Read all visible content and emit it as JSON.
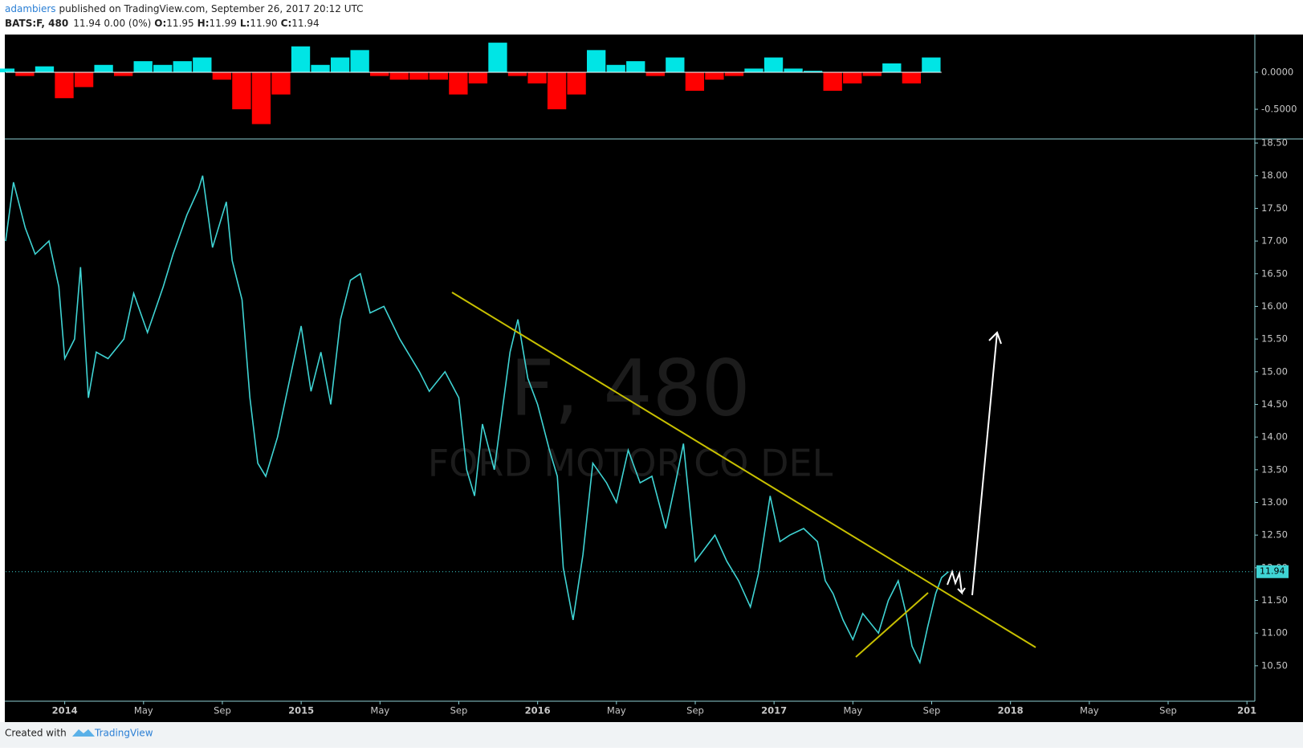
{
  "header": {
    "author": "adambiers",
    "published": "published on TradingView.com, September 26, 2017 20:12 UTC",
    "symbol": "BATS:F, 480",
    "quote": "11.94 0.00 (0%)",
    "ohlc": [
      {
        "label": "O:",
        "value": "11.95"
      },
      {
        "label": "H:",
        "value": "11.99"
      },
      {
        "label": "L:",
        "value": "11.90"
      },
      {
        "label": "C:",
        "value": "11.94"
      }
    ]
  },
  "footer": {
    "text": "Created with",
    "brand": "TradingView"
  },
  "chart_data": [
    {
      "type": "histogram-oscillator",
      "color_up": "#00e5e5",
      "color_down": "#ff0000",
      "x": [
        -3,
        -2,
        -1,
        0,
        1,
        2,
        3,
        4,
        5,
        6,
        7,
        8,
        9,
        10,
        11,
        12,
        13,
        14,
        15,
        16,
        17,
        18,
        19,
        20,
        21,
        22,
        23,
        24,
        25,
        26,
        27,
        28,
        29,
        30,
        31,
        32,
        33,
        34,
        35,
        36,
        37,
        38,
        39,
        40,
        41,
        42,
        43,
        44
      ],
      "values": [
        0.05,
        -0.05,
        0.08,
        -0.35,
        -0.2,
        0.1,
        -0.05,
        0.15,
        0.1,
        0.15,
        0.2,
        -0.1,
        -0.5,
        -0.7,
        -0.3,
        0.35,
        0.1,
        0.2,
        0.3,
        -0.05,
        -0.1,
        -0.1,
        -0.1,
        -0.3,
        -0.15,
        0.4,
        -0.05,
        -0.15,
        -0.5,
        -0.3,
        0.3,
        0.1,
        0.15,
        -0.05,
        0.2,
        -0.25,
        -0.1,
        -0.05,
        0.05,
        0.2,
        0.05,
        0.02,
        -0.25,
        -0.15,
        -0.05,
        0.12,
        -0.15,
        0.2
      ],
      "xlim": [
        -3,
        60.4
      ],
      "ylim": [
        -0.89,
        0.51
      ],
      "yticks": [
        {
          "value": 0,
          "label": "0.0000"
        },
        {
          "value": -0.5,
          "label": "-0.5000"
        }
      ]
    },
    {
      "type": "line",
      "color": "#3fd4d4",
      "watermark": "F, 480",
      "watermark_sub": "FORD MOTOR CO DEL",
      "last_value": 11.94,
      "last_label": "11.94",
      "x": [
        -3,
        -2.6,
        -2,
        -1.5,
        -0.8,
        -0.3,
        0,
        0.5,
        0.8,
        1.2,
        1.6,
        2.2,
        3,
        3.5,
        4.2,
        5,
        5.5,
        6.2,
        6.8,
        7,
        7.5,
        8.2,
        8.5,
        9,
        9.4,
        9.8,
        10.2,
        10.8,
        11.5,
        12,
        12.5,
        13,
        13.5,
        14,
        14.5,
        15,
        15.5,
        16.2,
        17,
        18,
        18.5,
        19.3,
        20,
        20.4,
        20.8,
        21.2,
        21.8,
        22.6,
        23,
        23.5,
        24,
        24.6,
        25,
        25.3,
        25.8,
        26.3,
        26.8,
        27.5,
        28,
        28.6,
        29.2,
        29.8,
        30.5,
        31,
        31.4,
        32,
        32.5,
        33,
        33.6,
        34.2,
        34.8,
        35.2,
        35.8,
        36.3,
        36.8,
        37.5,
        38.2,
        38.6,
        39,
        39.5,
        40,
        40.5,
        41.3,
        41.8,
        42.3,
        42.7,
        43,
        43.4,
        43.8,
        44.2,
        44.5,
        44.85
      ],
      "values": [
        17.0,
        17.9,
        17.2,
        16.8,
        17.0,
        16.3,
        15.2,
        15.5,
        16.6,
        14.6,
        15.3,
        15.2,
        15.5,
        16.2,
        15.6,
        16.3,
        16.8,
        17.4,
        17.8,
        18.0,
        16.9,
        17.6,
        16.7,
        16.1,
        14.6,
        13.6,
        13.4,
        14.0,
        15.0,
        15.7,
        14.7,
        15.3,
        14.5,
        15.8,
        16.4,
        16.5,
        15.9,
        16.0,
        15.5,
        15.0,
        14.7,
        15.0,
        14.6,
        13.5,
        13.1,
        14.2,
        13.5,
        15.3,
        15.8,
        14.9,
        14.5,
        13.8,
        13.4,
        12.0,
        11.2,
        12.2,
        13.6,
        13.3,
        13.0,
        13.8,
        13.3,
        13.4,
        12.6,
        13.3,
        13.9,
        12.1,
        12.3,
        12.5,
        12.1,
        11.8,
        11.4,
        11.9,
        13.1,
        12.4,
        12.5,
        12.6,
        12.4,
        11.8,
        11.6,
        11.2,
        10.9,
        11.3,
        11.0,
        11.5,
        11.8,
        11.3,
        10.8,
        10.55,
        11.1,
        11.6,
        11.85,
        11.94
      ],
      "xlim": [
        -3,
        60.4
      ],
      "ylim": [
        9.97,
        18.55
      ],
      "yticks": [
        {
          "value": 10.5,
          "label": "10.50"
        },
        {
          "value": 11,
          "label": "11.00"
        },
        {
          "value": 11.5,
          "label": "11.50"
        },
        {
          "value": 12,
          "label": "12.00"
        },
        {
          "value": 12.5,
          "label": "12.50"
        },
        {
          "value": 13,
          "label": "13.00"
        },
        {
          "value": 13.5,
          "label": "13.50"
        },
        {
          "value": 14,
          "label": "14.00"
        },
        {
          "value": 14.5,
          "label": "14.50"
        },
        {
          "value": 15,
          "label": "15.00"
        },
        {
          "value": 15.5,
          "label": "15.50"
        },
        {
          "value": 16,
          "label": "16.00"
        },
        {
          "value": 16.5,
          "label": "16.50"
        },
        {
          "value": 17,
          "label": "17.00"
        },
        {
          "value": 17.5,
          "label": "17.50"
        },
        {
          "value": 18,
          "label": "18.00"
        },
        {
          "value": 18.5,
          "label": "18.50"
        }
      ],
      "xticks": [
        {
          "value": 0,
          "label": "2014"
        },
        {
          "value": 4,
          "label": "May"
        },
        {
          "value": 8,
          "label": "Sep"
        },
        {
          "value": 12,
          "label": "2015"
        },
        {
          "value": 16,
          "label": "May"
        },
        {
          "value": 20,
          "label": "Sep"
        },
        {
          "value": 24,
          "label": "2016"
        },
        {
          "value": 28,
          "label": "May"
        },
        {
          "value": 32,
          "label": "Sep"
        },
        {
          "value": 36,
          "label": "2017"
        },
        {
          "value": 40,
          "label": "May"
        },
        {
          "value": 44,
          "label": "Sep"
        },
        {
          "value": 48,
          "label": "2018"
        },
        {
          "value": 52,
          "label": "May"
        },
        {
          "value": 56,
          "label": "Sep"
        },
        {
          "value": 60,
          "label": "201"
        }
      ]
    }
  ]
}
